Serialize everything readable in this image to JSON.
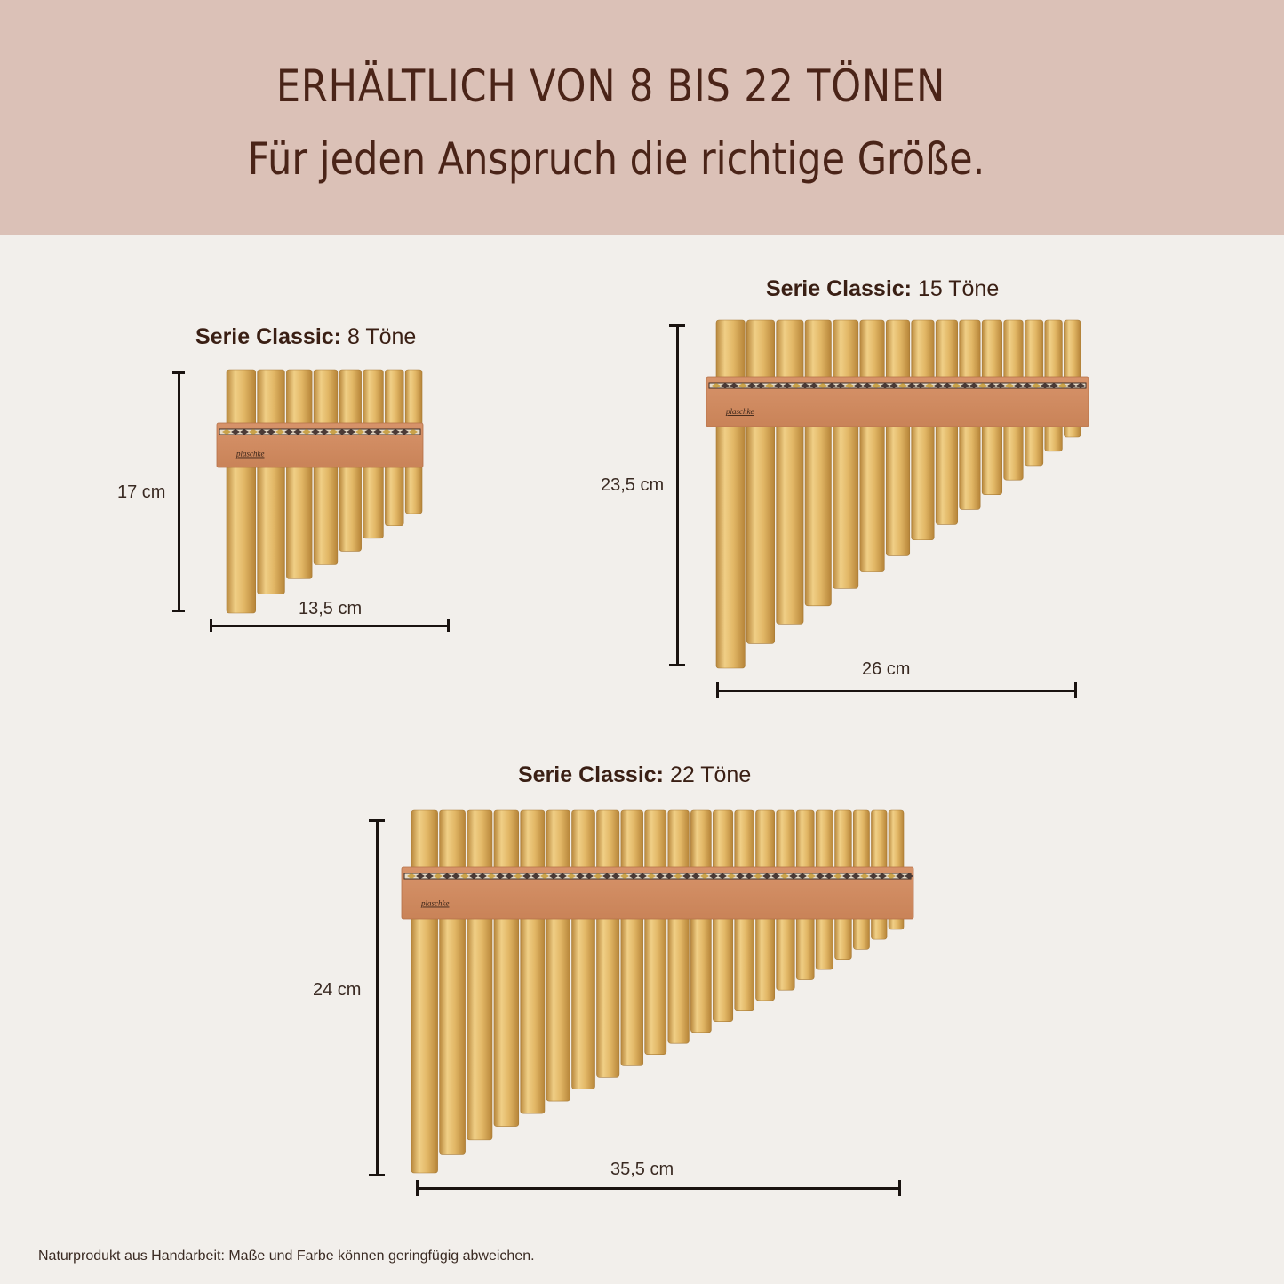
{
  "header": {
    "line1": "ERHÄLTLICH VON 8 BIS 22 TÖNEN",
    "line2": "Für jeden Anspruch die richtige Größe."
  },
  "colors": {
    "banner": "#dbc1b7",
    "background": "#f2efeb",
    "text_dark": "#4a2418",
    "bamboo": "#e0b565",
    "wood_band": "#d9956a"
  },
  "products": [
    {
      "series_label": "Serie Classic:",
      "tones_label": "8 Töne",
      "tones": 8,
      "height_label": "17 cm",
      "width_label": "13,5 cm",
      "brand": "plaschke"
    },
    {
      "series_label": "Serie Classic:",
      "tones_label": "15 Töne",
      "tones": 15,
      "height_label": "23,5 cm",
      "width_label": "26 cm",
      "brand": "plaschke"
    },
    {
      "series_label": "Serie Classic:",
      "tones_label": "22 Töne",
      "tones": 22,
      "height_label": "24 cm",
      "width_label": "35,5 cm",
      "brand": "plaschke"
    }
  ],
  "footer": {
    "note": "Naturprodukt aus Handarbeit: Maße und Farbe können geringfügig abweichen."
  }
}
